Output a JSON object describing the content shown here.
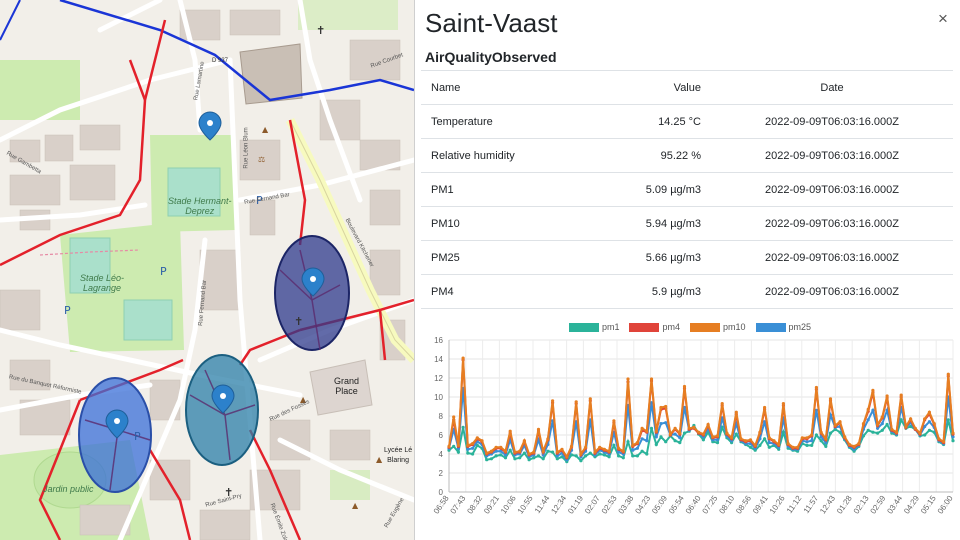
{
  "map": {
    "labels": {
      "stade_hermant": "Stade Hermant-\nDeprez",
      "stade_leo": "Stade Léo-\nLagrange",
      "grand_place": "Grand\nPlace",
      "jardin_public": "Jardin public",
      "lycee": "Lycée Lé\nBlaring",
      "d937": "D 937",
      "rue_leon_blum": "Rue Léon Blum",
      "rue_fernand": "Rue Fernand Bar",
      "rue_des_fosses": "Rue des Fossés",
      "rue_saint_pry": "Rue Saint-Pry",
      "rue_de_la_fosse": "Rue Saint-Vaast",
      "rue_banquet": "Rue du Banquet Réformiste",
      "rue_emile_zola": "Rue Émile Zola",
      "rue_eugene": "Rue Eugène",
      "boulevard": "Boulevard Kitchener",
      "rue_gambetta": "Rue Gambetta",
      "rue_lamartine": "Rue Lamartine",
      "rue_courbet": "Rue Courbet",
      "rue_de_lille": "Rue de Lille"
    },
    "markers": [
      "location-pin",
      "location-pin",
      "location-pin",
      "location-pin"
    ],
    "colors": {
      "zone_dark": "#2e3a8c",
      "zone_blue": "#3a6fd8",
      "zone_teal": "#2b7fa8",
      "route_red": "#e3212b",
      "route_blue": "#1a35d6",
      "pin": "#2c81cb"
    }
  },
  "panel": {
    "title": "Saint-Vaast",
    "close_label": "×",
    "subtitle": "AirQualityObserved",
    "table": {
      "headers": {
        "name": "Name",
        "value": "Value",
        "date": "Date"
      },
      "rows": [
        {
          "name": "Temperature",
          "value": "14.25 °C",
          "date": "2022-09-09T06:03:16.000Z"
        },
        {
          "name": "Relative humidity",
          "value": "95.22 %",
          "date": "2022-09-09T06:03:16.000Z"
        },
        {
          "name": "PM1",
          "value": "5.09 µg/m3",
          "date": "2022-09-09T06:03:16.000Z"
        },
        {
          "name": "PM10",
          "value": "5.94 µg/m3",
          "date": "2022-09-09T06:03:16.000Z"
        },
        {
          "name": "PM25",
          "value": "5.66 µg/m3",
          "date": "2022-09-09T06:03:16.000Z"
        },
        {
          "name": "PM4",
          "value": "5.9 µg/m3",
          "date": "2022-09-09T06:03:16.000Z"
        }
      ]
    }
  },
  "chart_data": {
    "type": "line",
    "title": "",
    "xlabel": "",
    "ylabel": "",
    "ylim": [
      0,
      16
    ],
    "yticks": [
      0,
      2,
      4,
      6,
      8,
      10,
      12,
      14,
      16
    ],
    "grid": true,
    "legend_position": "top-center",
    "x_tick_labels": [
      "06:58",
      "07:43",
      "08:32",
      "09:21",
      "10:06",
      "10:55",
      "11:44",
      "12:34",
      "01:19",
      "02:07",
      "02:53",
      "03:38",
      "04:23",
      "05:09",
      "05:54",
      "06:40",
      "07:25",
      "08:10",
      "08:56",
      "09:41",
      "10:26",
      "11:12",
      "11:57",
      "12:43",
      "01:28",
      "02:13",
      "02:59",
      "03:44",
      "04:29",
      "05:15",
      "06:00"
    ],
    "series": [
      {
        "name": "pm1",
        "color": "#2bb39a",
        "values": [
          4.4,
          4.8,
          4.2,
          6.8,
          4.1,
          4.0,
          4.9,
          4.6,
          3.4,
          3.5,
          3.8,
          3.9,
          3.6,
          4.4,
          3.5,
          3.6,
          4.1,
          3.4,
          3.6,
          3.8,
          3.5,
          4.3,
          4.2,
          3.5,
          3.7,
          3.2,
          3.9,
          3.8,
          3.3,
          3.8,
          4.1,
          3.7,
          4.0,
          3.9,
          3.7,
          4.9,
          3.8,
          3.6,
          5.3,
          3.8,
          3.8,
          4.3,
          4.0,
          6.7,
          5.0,
          5.8,
          5.3,
          5.9,
          5.4,
          5.2,
          6.2,
          6.4,
          7.0,
          6.1,
          5.5,
          6.3,
          5.3,
          5.2,
          6.8,
          5.7,
          5.2,
          6.1,
          5.3,
          5.0,
          4.7,
          4.4,
          4.9,
          5.6,
          4.7,
          4.9,
          4.5,
          6.3,
          4.6,
          4.4,
          4.3,
          5.1,
          4.9,
          4.9,
          6.0,
          5.4,
          4.8,
          6.2,
          6.6,
          6.3,
          5.5,
          4.7,
          4.3,
          4.8,
          5.9,
          6.5,
          6.3,
          6.2,
          6.5,
          7.1,
          6.2,
          6.0,
          7.6,
          6.7,
          6.9,
          6.6,
          5.9,
          6.0,
          6.5,
          6.3,
          5.3,
          5.0,
          7.6,
          5.4
        ]
      },
      {
        "name": "pm4",
        "color": "#e0443a",
        "values": [
          4.7,
          7.6,
          4.8,
          13.9,
          4.8,
          5.0,
          5.6,
          5.3,
          4.0,
          4.2,
          4.6,
          4.6,
          4.2,
          6.2,
          4.1,
          4.2,
          5.3,
          3.9,
          4.1,
          6.4,
          4.2,
          5.5,
          9.4,
          4.1,
          4.4,
          3.6,
          4.7,
          9.3,
          3.9,
          4.6,
          9.6,
          4.1,
          4.6,
          4.4,
          4.2,
          7.3,
          4.5,
          4.2,
          11.6,
          4.8,
          5.1,
          6.5,
          6.3,
          11.7,
          6.3,
          8.7,
          8.8,
          6.0,
          6.6,
          6.1,
          10.9,
          6.6,
          6.7,
          6.2,
          6.0,
          7.0,
          5.7,
          5.8,
          9.1,
          6.1,
          5.6,
          8.2,
          5.5,
          5.3,
          5.4,
          4.8,
          6.2,
          8.7,
          5.6,
          5.3,
          4.9,
          9.1,
          5.0,
          4.6,
          4.6,
          5.6,
          5.6,
          5.9,
          10.8,
          6.2,
          5.5,
          9.6,
          6.9,
          7.3,
          5.7,
          4.9,
          4.7,
          5.0,
          7.1,
          8.5,
          10.5,
          7.0,
          7.8,
          9.9,
          6.5,
          6.2,
          10.0,
          6.8,
          7.6,
          6.6,
          6.1,
          7.6,
          8.2,
          7.1,
          5.5,
          5.2,
          12.2,
          6.1
        ]
      },
      {
        "name": "pm10",
        "color": "#e67e22",
        "values": [
          4.8,
          7.9,
          4.9,
          14.1,
          4.9,
          5.1,
          5.7,
          5.4,
          4.1,
          4.3,
          4.7,
          4.7,
          4.3,
          6.4,
          4.2,
          4.3,
          5.4,
          4.0,
          4.2,
          6.6,
          4.3,
          5.6,
          9.6,
          4.2,
          4.5,
          3.7,
          4.8,
          9.5,
          4.0,
          4.7,
          9.8,
          4.2,
          4.7,
          4.5,
          4.3,
          7.5,
          4.6,
          4.3,
          11.9,
          4.9,
          5.2,
          6.7,
          6.4,
          11.9,
          6.4,
          8.9,
          9.0,
          6.1,
          6.7,
          6.2,
          11.1,
          6.7,
          6.8,
          6.3,
          6.1,
          7.1,
          5.8,
          5.9,
          9.3,
          6.2,
          5.7,
          8.4,
          5.6,
          5.4,
          5.5,
          4.9,
          6.3,
          8.9,
          5.7,
          5.4,
          5.0,
          9.3,
          5.1,
          4.7,
          4.7,
          5.7,
          5.7,
          6.0,
          11.0,
          6.3,
          5.6,
          9.8,
          7.0,
          7.4,
          5.8,
          5.0,
          4.8,
          5.1,
          7.2,
          8.7,
          10.7,
          7.1,
          7.9,
          10.1,
          6.6,
          6.3,
          10.2,
          6.9,
          7.7,
          6.7,
          6.2,
          7.7,
          8.4,
          7.2,
          5.6,
          5.3,
          12.4,
          6.2
        ]
      },
      {
        "name": "pm25",
        "color": "#3a8fd6",
        "values": [
          4.6,
          6.6,
          4.6,
          10.9,
          4.5,
          4.6,
          5.3,
          5.0,
          3.8,
          4.0,
          4.3,
          4.3,
          3.9,
          5.5,
          3.9,
          4.0,
          4.9,
          3.7,
          3.9,
          5.5,
          3.9,
          5.0,
          7.5,
          3.8,
          4.1,
          3.4,
          4.4,
          7.4,
          3.7,
          4.3,
          7.6,
          3.9,
          4.4,
          4.2,
          4.0,
          6.3,
          4.2,
          4.0,
          9.1,
          4.4,
          4.6,
          5.6,
          5.4,
          9.4,
          5.8,
          7.2,
          7.3,
          6.0,
          6.1,
          5.7,
          8.9,
          6.5,
          6.8,
          6.2,
          5.8,
          6.7,
          5.5,
          5.5,
          7.8,
          5.9,
          5.4,
          7.2,
          5.4,
          5.1,
          5.1,
          4.6,
          5.6,
          7.4,
          5.2,
          5.1,
          4.7,
          7.8,
          4.8,
          4.5,
          4.5,
          5.4,
          5.3,
          5.4,
          8.6,
          5.8,
          5.2,
          8.1,
          6.8,
          6.9,
          5.6,
          4.8,
          4.5,
          4.9,
          6.6,
          7.6,
          8.6,
          6.7,
          7.2,
          8.6,
          6.4,
          6.1,
          8.9,
          6.8,
          7.3,
          6.6,
          6.0,
          6.9,
          7.4,
          6.8,
          5.4,
          5.1,
          10.0,
          5.8
        ]
      }
    ]
  }
}
